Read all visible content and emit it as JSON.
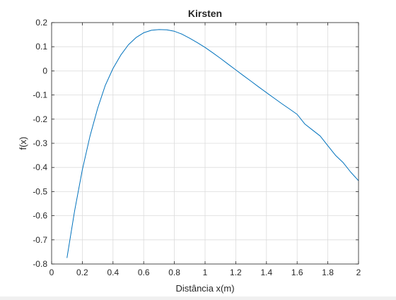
{
  "chart_data": {
    "type": "line",
    "title": "Kirsten",
    "xlabel": "Distância x(m)",
    "ylabel": "f(x)",
    "xlim": [
      0,
      2
    ],
    "ylim": [
      -0.8,
      0.2
    ],
    "grid": true,
    "x_ticks": [
      0,
      0.2,
      0.4,
      0.6,
      0.8,
      1,
      1.2,
      1.4,
      1.6,
      1.8,
      2
    ],
    "x_tick_labels": [
      "0",
      "0.2",
      "0.4",
      "0.6",
      "0.8",
      "1",
      "1.2",
      "1.4",
      "1.6",
      "1.8",
      "2"
    ],
    "y_ticks": [
      -0.8,
      -0.7,
      -0.6,
      -0.5,
      -0.4,
      -0.3,
      -0.2,
      -0.1,
      0,
      0.1,
      0.2
    ],
    "y_tick_labels": [
      "-0.8",
      "-0.7",
      "-0.6",
      "-0.5",
      "-0.4",
      "-0.3",
      "-0.2",
      "-0.1",
      "0",
      "0.1",
      "0.2"
    ],
    "line_color": "#0072bd",
    "series": [
      {
        "x": [
          0.1,
          0.15,
          0.2,
          0.25,
          0.3,
          0.35,
          0.4,
          0.45,
          0.5,
          0.55,
          0.6,
          0.65,
          0.7,
          0.75,
          0.8,
          0.85,
          0.9,
          0.95,
          1.0,
          1.05,
          1.1,
          1.15,
          1.2,
          1.25,
          1.3,
          1.35,
          1.4,
          1.45,
          1.5,
          1.55,
          1.6,
          1.65,
          1.7,
          1.75,
          1.8,
          1.85,
          1.9,
          1.95,
          2.0
        ],
        "y": [
          -0.775,
          -0.58,
          -0.41,
          -0.27,
          -0.155,
          -0.06,
          0.01,
          0.065,
          0.108,
          0.138,
          0.158,
          0.168,
          0.171,
          0.17,
          0.164,
          0.152,
          0.135,
          0.117,
          0.097,
          0.075,
          0.052,
          0.028,
          0.004,
          -0.02,
          -0.043,
          -0.067,
          -0.09,
          -0.113,
          -0.136,
          -0.158,
          -0.18,
          -0.22,
          -0.245,
          -0.27,
          -0.31,
          -0.35,
          -0.38,
          -0.42,
          -0.455
        ]
      }
    ]
  }
}
